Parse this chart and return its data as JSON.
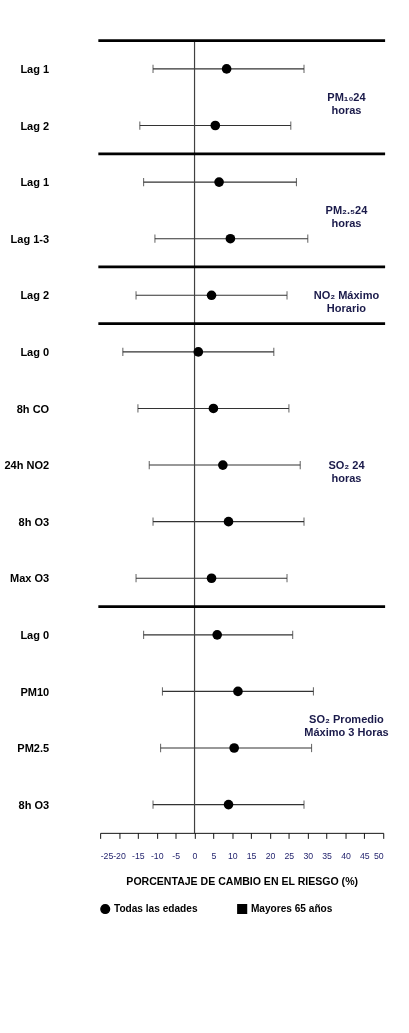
{
  "chart_data": {
    "type": "scatter",
    "orientation": "horizontal",
    "xlabel": "PORCENTAJE DE CAMBIO EN EL RIESGO  (%)",
    "categories": [
      "Lag 1",
      "Lag 2",
      "Lag 1",
      "Lag 1-3",
      "Lag 2",
      "Lag 0",
      "8h CO",
      "24h NO2",
      "8h O3",
      "Max O3",
      "Lag 0",
      "PM10",
      "PM2.5",
      "8h O3"
    ],
    "series": [
      {
        "name": "Todas las edades",
        "color": "#000000",
        "marker": "circle",
        "values": [
          8.5,
          5.5,
          6.5,
          9.5,
          4.5,
          1,
          5,
          7.5,
          9,
          4.5,
          6,
          11.5,
          10.5,
          9
        ],
        "errors": [
          [
            -11,
            29
          ],
          [
            -14.5,
            25.5
          ],
          [
            -13.5,
            27
          ],
          [
            -10.5,
            30
          ],
          [
            -15.5,
            24.5
          ],
          [
            -19,
            21
          ],
          [
            -15,
            25
          ],
          [
            -12,
            28
          ],
          [
            -11,
            29
          ],
          [
            -15.5,
            24.5
          ],
          [
            -13.5,
            26
          ],
          [
            -8.5,
            31.5
          ],
          [
            -9,
            31
          ],
          [
            -11,
            29
          ]
        ]
      },
      {
        "name": "Mayores 65 años",
        "color": "#000000",
        "marker": "square",
        "values": [
          null,
          null,
          null,
          null,
          null,
          null,
          null,
          null,
          null,
          null,
          null,
          null,
          null,
          null
        ]
      }
    ],
    "xlim": [
      -25,
      50
    ],
    "xticks": [
      -25,
      -20,
      -15,
      -10,
      -5,
      0,
      5,
      10,
      15,
      20,
      25,
      30,
      35,
      40,
      45,
      50
    ],
    "ref_lines": [
      {
        "axis": "x",
        "value": 0,
        "color": "#404040"
      }
    ],
    "annotations": [
      "PM₁₀24\nhoras",
      "PM₂.₅24\nhoras",
      "NO₂ Máximo\nHorario",
      "SO₂ 24\nhoras",
      "SO₂ Promedio\nMáximo 3 Horas"
    ],
    "legend": "bottom",
    "grid": false
  }
}
